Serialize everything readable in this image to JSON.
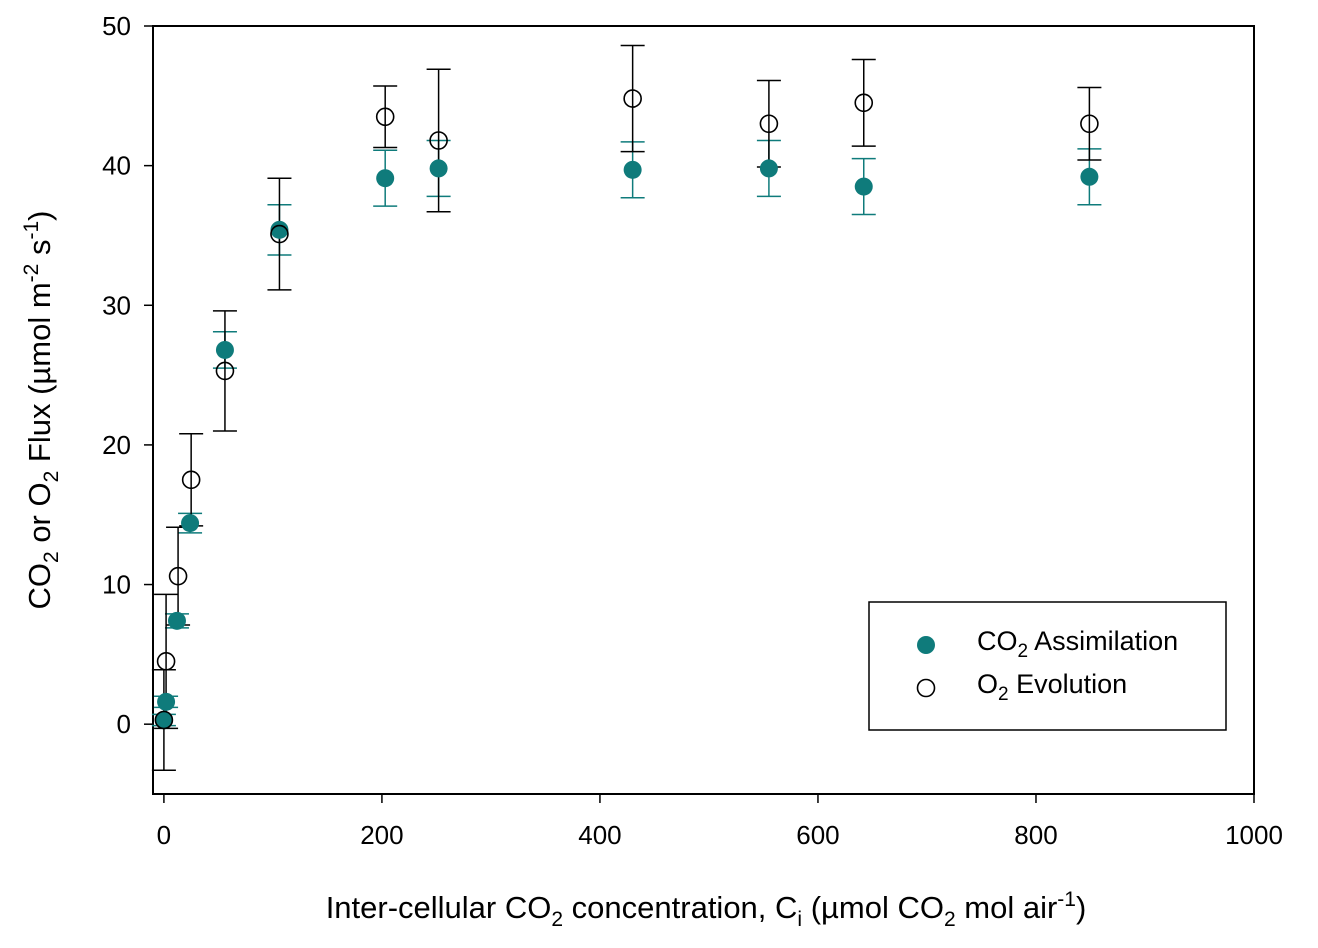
{
  "chart_data": {
    "type": "scatter",
    "xlabel": {
      "pre": "Inter-cellular CO",
      "sub1": "2",
      "mid": " concentration, C",
      "sub2": "i",
      "post": " (µmol CO",
      "sub3": "2",
      "post2": " mol air",
      "sup": "-1",
      "end": ")"
    },
    "ylabel": {
      "pre": "CO",
      "sub1": "2",
      "mid": " or O",
      "sub2": "2",
      "post": " Flux (µmol m",
      "sup1": "-2",
      "post2": " s",
      "sup2": "-1",
      "end": ")"
    },
    "xlim": [
      -10,
      1000
    ],
    "ylim": [
      -5,
      50
    ],
    "xticks": [
      0,
      200,
      400,
      600,
      800,
      1000
    ],
    "yticks": [
      0,
      10,
      20,
      30,
      40,
      50
    ],
    "grid": false,
    "legend_position": "bottom-right",
    "series": [
      {
        "name": "CO2 Assimilation",
        "legend_label": {
          "pre": "CO",
          "sub": "2",
          "post": " Assimilation"
        },
        "marker": "filled-circle",
        "color": "#0f7b7b",
        "points": [
          {
            "x": 0,
            "y": 0.3,
            "err": 0.4
          },
          {
            "x": 2,
            "y": 1.6,
            "err": 0.4
          },
          {
            "x": 12,
            "y": 7.4,
            "err": 0.5
          },
          {
            "x": 24,
            "y": 14.4,
            "err": 0.7
          },
          {
            "x": 56,
            "y": 26.8,
            "err": 1.3
          },
          {
            "x": 106,
            "y": 35.4,
            "err": 1.8
          },
          {
            "x": 203,
            "y": 39.1,
            "err": 2.0
          },
          {
            "x": 252,
            "y": 39.8,
            "err": 2.0
          },
          {
            "x": 430,
            "y": 39.7,
            "err": 2.0
          },
          {
            "x": 555,
            "y": 39.8,
            "err": 2.0
          },
          {
            "x": 642,
            "y": 38.5,
            "err": 2.0
          },
          {
            "x": 849,
            "y": 39.2,
            "err": 2.0
          }
        ]
      },
      {
        "name": "O2 Evolution",
        "legend_label": {
          "pre": "O",
          "sub": "2",
          "post": " Evolution"
        },
        "marker": "open-circle",
        "color": "#000000",
        "points": [
          {
            "x": 0,
            "y": 0.3,
            "err": 3.6
          },
          {
            "x": 2,
            "y": 4.5,
            "err": 4.8
          },
          {
            "x": 13,
            "y": 10.6,
            "err": 3.5
          },
          {
            "x": 25,
            "y": 17.5,
            "err": 3.3
          },
          {
            "x": 56,
            "y": 25.3,
            "err": 4.3
          },
          {
            "x": 106,
            "y": 35.1,
            "err": 4.0
          },
          {
            "x": 203,
            "y": 43.5,
            "err": 2.2
          },
          {
            "x": 252,
            "y": 41.8,
            "err": 5.1
          },
          {
            "x": 430,
            "y": 44.8,
            "err": 3.8
          },
          {
            "x": 555,
            "y": 43.0,
            "err": 3.1
          },
          {
            "x": 642,
            "y": 44.5,
            "err": 3.1
          },
          {
            "x": 849,
            "y": 43.0,
            "err": 2.6
          }
        ]
      }
    ]
  }
}
